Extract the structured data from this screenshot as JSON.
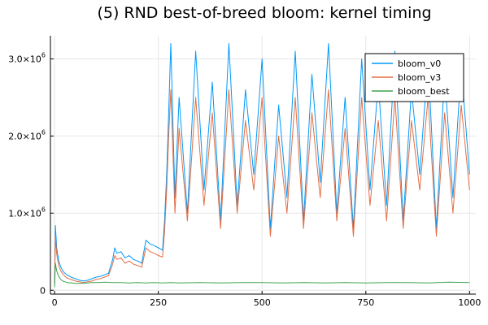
{
  "chart_data": {
    "type": "line",
    "title": "(5) RND best-of-breed bloom: kernel timing",
    "xlabel": "",
    "ylabel": "",
    "xlim": [
      -10,
      1015
    ],
    "ylim": [
      -50000,
      3300000
    ],
    "grid": true,
    "legend_position": "top-right",
    "x_ticks": [
      {
        "value": 0,
        "label": "0"
      },
      {
        "value": 250,
        "label": "250"
      },
      {
        "value": 500,
        "label": "500"
      },
      {
        "value": 750,
        "label": "750"
      },
      {
        "value": 1000,
        "label": "1000"
      }
    ],
    "y_ticks": [
      {
        "value": 0,
        "label": "0",
        "sup": ""
      },
      {
        "value": 1000000,
        "label": "1.0×10",
        "sup": "6"
      },
      {
        "value": 2000000,
        "label": "2.0×10",
        "sup": "6"
      },
      {
        "value": 3000000,
        "label": "3.0×10",
        "sup": "6"
      }
    ],
    "series": [
      {
        "name": "bloom_v0",
        "color": "#009af9",
        "x": [
          0,
          2,
          5,
          10,
          15,
          20,
          25,
          30,
          40,
          50,
          60,
          70,
          80,
          90,
          100,
          110,
          120,
          130,
          140,
          145,
          150,
          160,
          170,
          180,
          190,
          200,
          210,
          220,
          230,
          240,
          250,
          260,
          265,
          270,
          275,
          280,
          290,
          300,
          320,
          340,
          360,
          380,
          400,
          420,
          440,
          460,
          480,
          500,
          520,
          540,
          560,
          580,
          600,
          620,
          640,
          660,
          680,
          700,
          720,
          740,
          760,
          780,
          800,
          820,
          840,
          860,
          880,
          900,
          920,
          940,
          960,
          980,
          1000
        ],
        "y": [
          80000,
          840000,
          550000,
          380000,
          300000,
          250000,
          220000,
          200000,
          170000,
          150000,
          130000,
          120000,
          130000,
          150000,
          170000,
          180000,
          200000,
          220000,
          400000,
          550000,
          480000,
          500000,
          420000,
          450000,
          400000,
          380000,
          350000,
          650000,
          600000,
          580000,
          550000,
          520000,
          900000,
          1500000,
          2300000,
          3200000,
          1200000,
          2500000,
          1000000,
          3100000,
          1300000,
          2700000,
          900000,
          3200000,
          1100000,
          2600000,
          1500000,
          3000000,
          800000,
          2400000,
          1200000,
          3100000,
          900000,
          2800000,
          1400000,
          3200000,
          1000000,
          2500000,
          800000,
          3000000,
          1300000,
          2700000,
          1100000,
          3100000,
          900000,
          2600000,
          1500000,
          3000000,
          800000,
          2800000,
          1200000,
          2900000,
          1500000
        ]
      },
      {
        "name": "bloom_v3",
        "color": "#e26f46",
        "x": [
          0,
          2,
          5,
          10,
          15,
          20,
          25,
          30,
          40,
          50,
          60,
          70,
          80,
          90,
          100,
          110,
          120,
          130,
          140,
          145,
          150,
          160,
          170,
          180,
          190,
          200,
          210,
          220,
          230,
          240,
          250,
          260,
          265,
          270,
          275,
          280,
          290,
          300,
          320,
          340,
          360,
          380,
          400,
          420,
          440,
          460,
          480,
          500,
          520,
          540,
          560,
          580,
          600,
          620,
          640,
          660,
          680,
          700,
          720,
          740,
          760,
          780,
          800,
          820,
          840,
          860,
          880,
          900,
          920,
          940,
          960,
          980,
          1000
        ],
        "y": [
          70000,
          700000,
          470000,
          320000,
          250000,
          210000,
          180000,
          160000,
          140000,
          120000,
          110000,
          100000,
          110000,
          120000,
          140000,
          150000,
          170000,
          190000,
          340000,
          450000,
          400000,
          420000,
          350000,
          380000,
          340000,
          320000,
          300000,
          550000,
          500000,
          480000,
          450000,
          430000,
          750000,
          1300000,
          2000000,
          2600000,
          1000000,
          2100000,
          900000,
          2500000,
          1100000,
          2300000,
          800000,
          2600000,
          1000000,
          2200000,
          1300000,
          2500000,
          700000,
          2000000,
          1000000,
          2500000,
          800000,
          2300000,
          1200000,
          2600000,
          900000,
          2100000,
          700000,
          2500000,
          1100000,
          2200000,
          900000,
          2500000,
          800000,
          2200000,
          1300000,
          2500000,
          700000,
          2300000,
          1000000,
          2400000,
          1300000
        ]
      },
      {
        "name": "bloom_best",
        "color": "#3da44d",
        "x": [
          0,
          2,
          5,
          10,
          15,
          20,
          25,
          30,
          40,
          50,
          60,
          70,
          80,
          90,
          100,
          120,
          140,
          160,
          180,
          200,
          220,
          240,
          260,
          280,
          300,
          350,
          400,
          450,
          500,
          550,
          600,
          650,
          700,
          750,
          800,
          850,
          900,
          950,
          1000
        ],
        "y": [
          40000,
          350000,
          250000,
          180000,
          140000,
          120000,
          110000,
          100000,
          95000,
          90000,
          90000,
          90000,
          95000,
          100000,
          100000,
          105000,
          100000,
          100000,
          95000,
          100000,
          95000,
          100000,
          95000,
          100000,
          95000,
          100000,
          95000,
          100000,
          100000,
          95000,
          100000,
          95000,
          100000,
          95000,
          100000,
          100000,
          95000,
          105000,
          100000
        ]
      }
    ]
  }
}
